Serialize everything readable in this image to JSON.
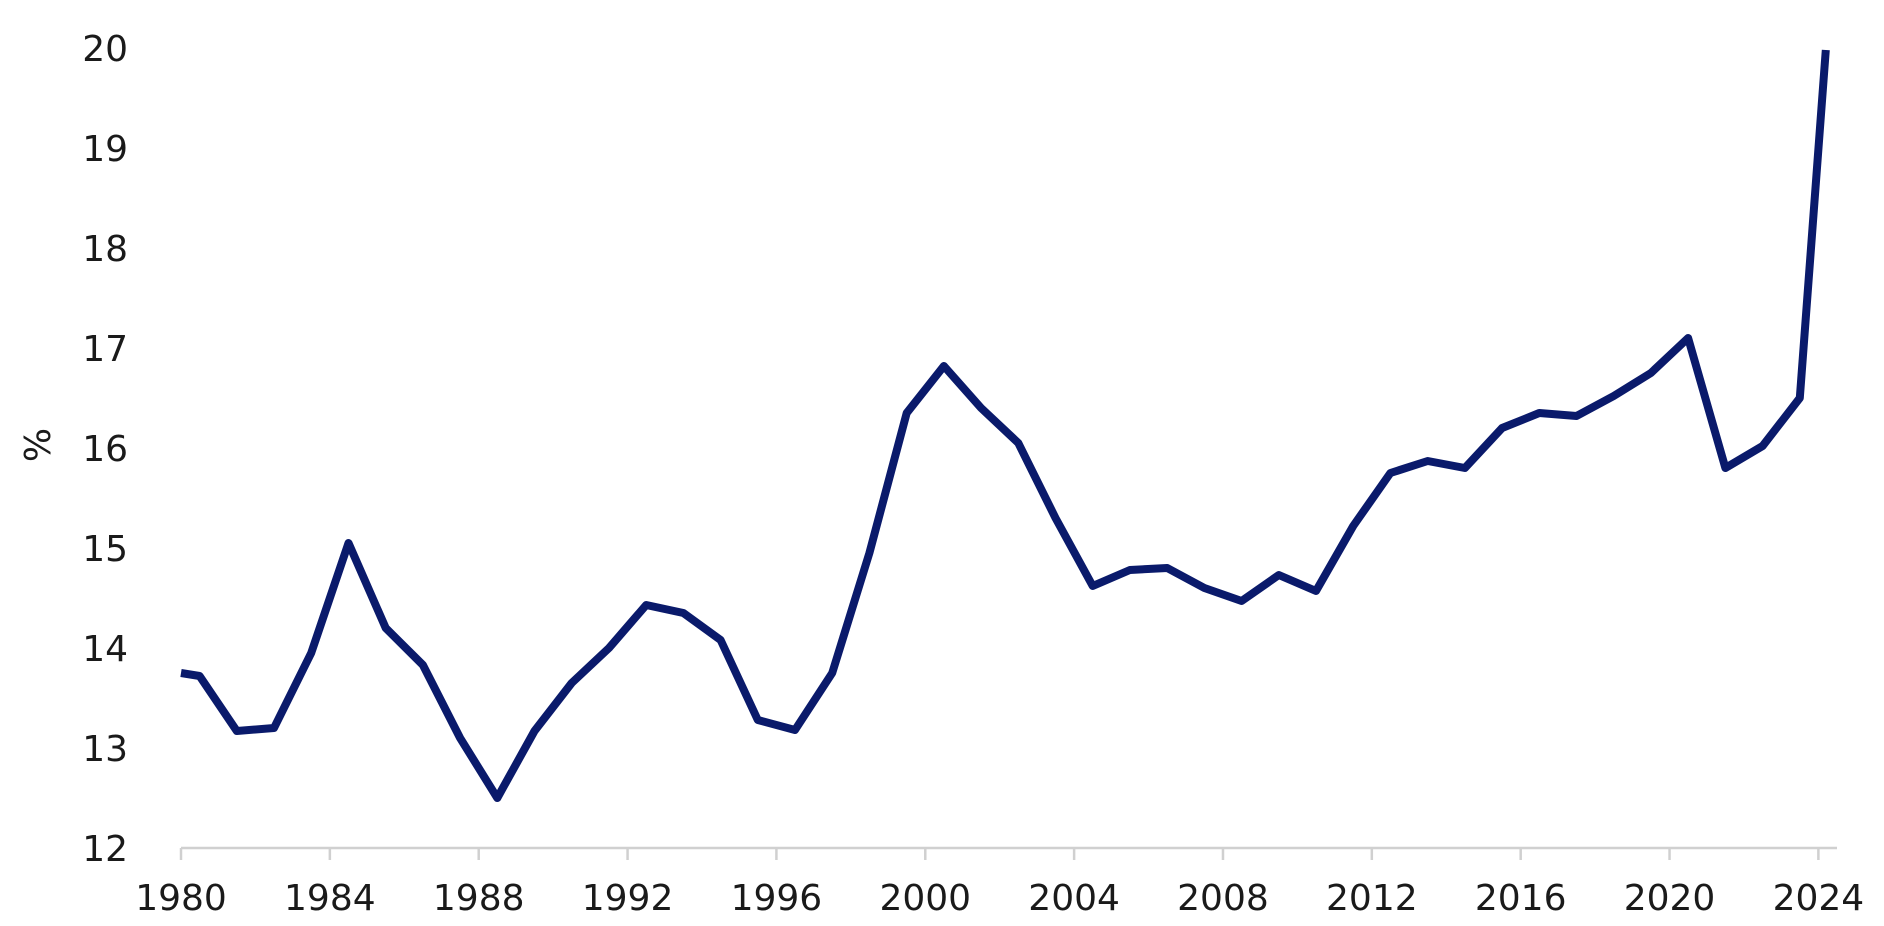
{
  "chart_data": {
    "type": "line",
    "title": "",
    "xlabel": "",
    "ylabel": "%",
    "xlim": [
      1980,
      2024.5
    ],
    "ylim": [
      12,
      20
    ],
    "x_ticks": [
      1980,
      1984,
      1988,
      1992,
      1996,
      2000,
      2004,
      2008,
      2012,
      2016,
      2020,
      2024
    ],
    "y_ticks": [
      12,
      13,
      14,
      15,
      16,
      17,
      18,
      19,
      20
    ],
    "grid": false,
    "legend": "none",
    "colors": {
      "line": "#0a1a6b",
      "axis": "#d0d0d0",
      "text": "#1a1a1a"
    },
    "series": [
      {
        "x": [
          1980,
          1980.5,
          1981.5,
          1982.5,
          1983.5,
          1984.5,
          1985.5,
          1986.5,
          1987.5,
          1988.5,
          1989.5,
          1990.5,
          1991.5,
          1992.5,
          1993.5,
          1994.5,
          1995.5,
          1996.5,
          1997.5,
          1998.5,
          1999.5,
          2000.5,
          2001.5,
          2002.5,
          2003.5,
          2004.5,
          2005.5,
          2006.5,
          2007.5,
          2008.5,
          2009.5,
          2010.5,
          2011.5,
          2012.5,
          2013.5,
          2014.5,
          2015.5,
          2016.5,
          2017.5,
          2018.5,
          2019.5,
          2020.5,
          2021.5,
          2022.5,
          2023.5,
          2024.2
        ],
        "values": [
          13.75,
          13.72,
          13.17,
          13.2,
          13.95,
          15.05,
          14.2,
          13.83,
          13.1,
          12.5,
          13.17,
          13.65,
          14.0,
          14.43,
          14.35,
          14.08,
          13.28,
          13.18,
          13.75,
          14.95,
          16.35,
          16.82,
          16.4,
          16.05,
          15.3,
          14.62,
          14.78,
          14.8,
          14.6,
          14.47,
          14.73,
          14.57,
          15.22,
          15.75,
          15.87,
          15.8,
          16.2,
          16.35,
          16.32,
          16.52,
          16.75,
          17.1,
          15.8,
          16.02,
          16.5,
          19.98
        ]
      }
    ]
  }
}
